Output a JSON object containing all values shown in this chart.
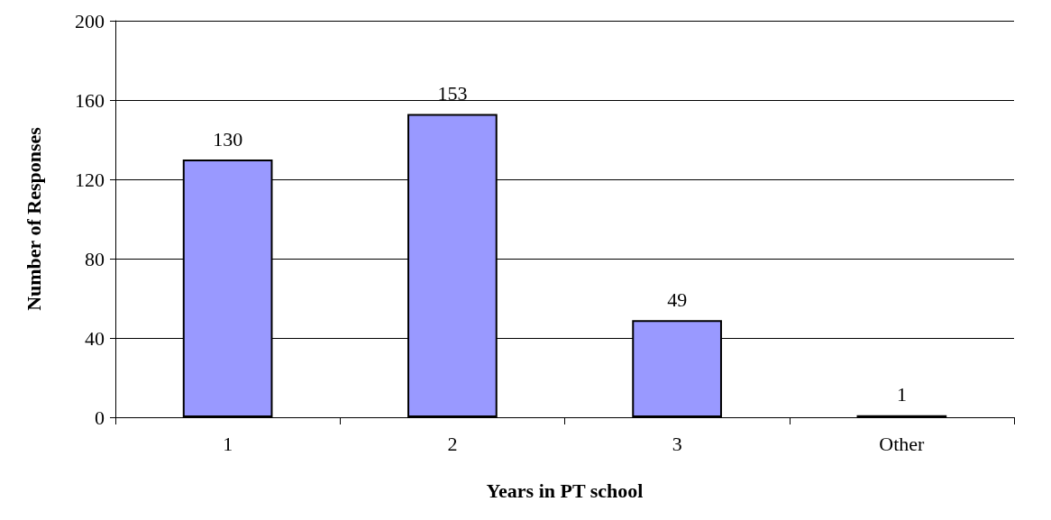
{
  "chart_data": {
    "type": "bar",
    "xlabel": "Years in PT school",
    "ylabel": "Number of Responses",
    "categories": [
      "1",
      "2",
      "3",
      "Other"
    ],
    "values": [
      130,
      153,
      49,
      1
    ],
    "color": "#9999ff",
    "ylim": [
      0,
      200
    ],
    "yticks": [
      0,
      40,
      80,
      120,
      160,
      200
    ],
    "grid": "y",
    "data_labels": true
  }
}
